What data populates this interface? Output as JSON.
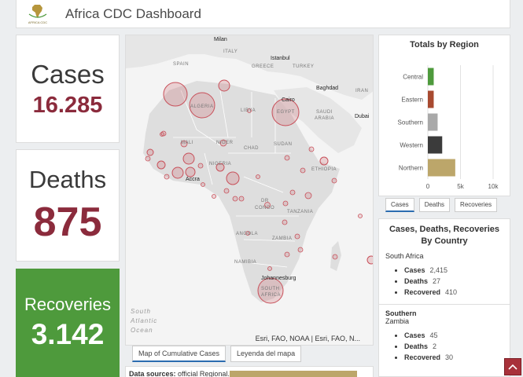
{
  "header": {
    "logo_text": "AFRICA CDC",
    "title": "Africa CDC Dashboard"
  },
  "stats": {
    "cases": {
      "label": "Cases",
      "value": "16.285"
    },
    "deaths": {
      "label": "Deaths",
      "value": "875"
    },
    "recoveries": {
      "label": "Recoveries",
      "value": "3.142"
    }
  },
  "map": {
    "labels": {
      "milan": "Milan",
      "italy": "ITALY",
      "spain": "SPAIN",
      "istanbul": "Istanbul",
      "greece": "GREECE",
      "turkey": "TURKEY",
      "baghdad": "Baghdad",
      "iran": "IRAN",
      "cairo": "Cairo",
      "egypt": "EGYPT",
      "algeria": "ALGERIA",
      "libya": "LIBYA",
      "saudi1": "SAUDI",
      "saudi2": "ARABIA",
      "dubai": "Dubai",
      "mali": "MALI",
      "niger": "NIGER",
      "chad": "CHAD",
      "sudan": "SUDAN",
      "nigeria": "NIGERIA",
      "ethiopia": "ETHIOPIA",
      "accra": "Accra",
      "dr": "DR",
      "congo": "CONGO",
      "tanzania": "TANZANIA",
      "angola": "ANGOLA",
      "zambia": "ZAMBIA",
      "namibia": "NAMIBIA",
      "johannesburg": "Johannesburg",
      "south": "SOUTH",
      "africa": "AFRICA"
    },
    "ocean": [
      "South",
      "Atlantic",
      "Ocean"
    ],
    "attribution": "Esri, FAO, NOAA | Esri, FAO, N...",
    "tabs": [
      "Map of Cumulative Cases",
      "Leyenda del mapa"
    ],
    "active_tab": "Map of Cumulative Cases",
    "circle_color": "#c8505a"
  },
  "sources": {
    "label": "Data sources:",
    "text": "official Regional..."
  },
  "chart_data": {
    "type": "bar",
    "title": "Totals by Region",
    "orientation": "horizontal",
    "categories": [
      "Central",
      "Eastern",
      "Southern",
      "Western",
      "Northern"
    ],
    "values": [
      900,
      900,
      1500,
      2200,
      4200
    ],
    "colors": [
      "#4e9a3c",
      "#a84a30",
      "#a9a9a9",
      "#3b3b3b",
      "#bca66a"
    ],
    "xlim": [
      0,
      10000
    ],
    "xticks": [
      "0",
      "5k",
      "10k"
    ],
    "tab_labels": [
      "Cases",
      "Deaths",
      "Recoveries"
    ],
    "active_tab": "Cases"
  },
  "list": {
    "title": "Cases, Deaths, Recoveries By Country",
    "entries": [
      {
        "region": "",
        "country": "South Africa",
        "cases": "2,415",
        "deaths": "27",
        "recovered": "410"
      },
      {
        "region": "Southern",
        "country": "Zambia",
        "cases": "45",
        "deaths": "2",
        "recovered": "30"
      }
    ],
    "cases_label": "Cases",
    "deaths_label": "Deaths",
    "recovered_label": "Recovered"
  },
  "accent": "#8b2b3c",
  "recovery_color": "#4e9a3c"
}
